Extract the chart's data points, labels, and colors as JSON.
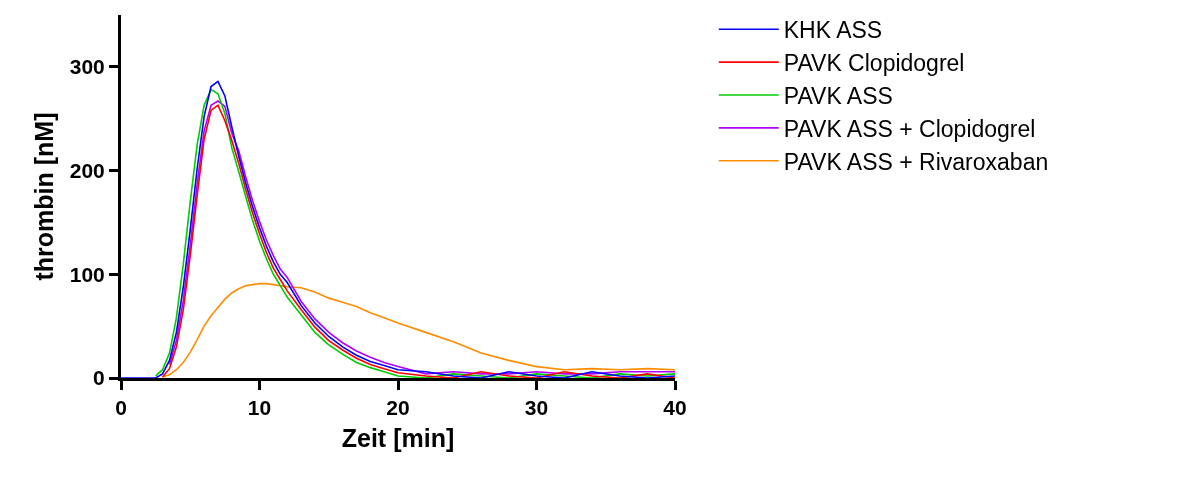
{
  "chart_data": {
    "type": "line",
    "xlabel": "Zeit [min]",
    "ylabel": "thrombin [nM]",
    "x": [
      0,
      2,
      2.5,
      3,
      3.5,
      4,
      4.5,
      5,
      5.5,
      6,
      6.5,
      7,
      7.5,
      8,
      8.5,
      9,
      9.5,
      10,
      10.5,
      11,
      11.5,
      12,
      13,
      14,
      15,
      16,
      17,
      18,
      19,
      20,
      22,
      24,
      26,
      28,
      30,
      32,
      34,
      36,
      38,
      40
    ],
    "series": [
      {
        "name": "KHK ASS",
        "color": "#0000ff",
        "values": [
          0,
          0,
          0,
          4,
          17,
          44,
          88,
          143,
          202,
          252,
          281,
          286,
          272,
          242,
          214,
          188,
          165,
          145,
          127,
          112,
          100,
          92,
          70,
          53,
          40,
          30,
          22,
          16,
          12,
          8,
          6,
          2,
          0,
          6,
          2,
          0,
          6,
          2,
          0,
          2
        ]
      },
      {
        "name": "PAVK Clopidogrel",
        "color": "#ff0000",
        "values": [
          null,
          null,
          null,
          1,
          9,
          30,
          66,
          118,
          176,
          230,
          258,
          263,
          248,
          229,
          207,
          182,
          159,
          139,
          121,
          106,
          95,
          84,
          66,
          49,
          36,
          27,
          19,
          13,
          9,
          5,
          2,
          0,
          6,
          2,
          0,
          6,
          2,
          0,
          4,
          0
        ]
      },
      {
        "name": "PAVK ASS",
        "color": "#00cc00",
        "values": [
          null,
          null,
          2,
          8,
          24,
          58,
          110,
          170,
          225,
          263,
          278,
          274,
          255,
          222,
          199,
          175,
          152,
          132,
          115,
          100,
          89,
          78,
          61,
          44,
          32,
          23,
          15,
          10,
          6,
          2,
          0,
          4,
          2,
          0,
          4,
          2,
          0,
          4,
          2,
          4
        ]
      },
      {
        "name": "PAVK ASS + Clopidogrel",
        "color": "#b000ff",
        "values": [
          null,
          null,
          null,
          null,
          13,
          36,
          75,
          128,
          187,
          238,
          263,
          267,
          262,
          236,
          219,
          194,
          171,
          151,
          133,
          118,
          105,
          97,
          74,
          57,
          44,
          34,
          26,
          20,
          15,
          11,
          4,
          6,
          4,
          4,
          6,
          4,
          4,
          6,
          6,
          6
        ]
      },
      {
        "name": "PAVK ASS + Rivaroxaban",
        "color": "#ff8c00",
        "values": [
          null,
          null,
          null,
          1,
          3,
          8,
          15,
          25,
          37,
          50,
          60,
          68,
          76,
          82,
          86,
          89,
          90,
          91,
          91,
          90,
          89,
          88,
          87,
          83,
          77,
          73,
          69,
          63,
          58,
          53,
          44,
          35,
          24,
          17,
          11,
          8,
          9,
          8,
          9,
          8
        ]
      }
    ],
    "xlim": [
      0,
      40
    ],
    "xticks": [
      0,
      10,
      20,
      30,
      40
    ],
    "ylim": [
      0,
      350
    ],
    "yticks": [
      0,
      100,
      200,
      300
    ],
    "grid": false,
    "legend": "top right",
    "marker": "none",
    "line_style": "solid"
  }
}
